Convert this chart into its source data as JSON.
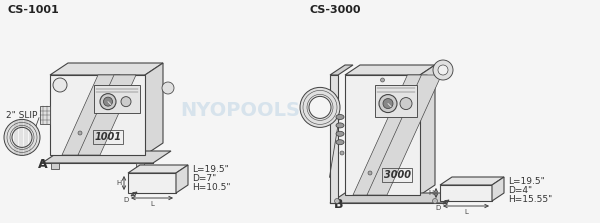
{
  "bg_color": "#f5f5f5",
  "line_color": "#444444",
  "title_left": "CS-1001",
  "title_right": "CS-3000",
  "label_A": "A",
  "label_B": "B",
  "slip_label": "2\" SLIP",
  "dims_left": [
    "L=19.5\"",
    "D=7\"",
    "H=10.5\""
  ],
  "dims_right": [
    "L=19.5\"",
    "D=4\"",
    "H=15.55\""
  ],
  "watermark": "NYOPOOLS",
  "watermark_color": "#aac8e0",
  "text_color": "#333333",
  "unit_number_left": "1001",
  "unit_number_right": "3000",
  "face_color": "#f0f0f0",
  "top_color": "#e0e0e0",
  "side_color": "#d8d8d8",
  "panel_color": "#e8e8e8",
  "knob_color": "#888888",
  "knob_inner_color": "#444444"
}
